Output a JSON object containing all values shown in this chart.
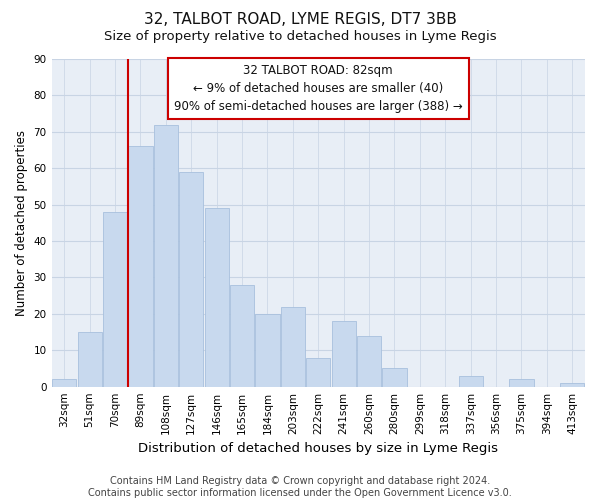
{
  "title": "32, TALBOT ROAD, LYME REGIS, DT7 3BB",
  "subtitle": "Size of property relative to detached houses in Lyme Regis",
  "xlabel": "Distribution of detached houses by size in Lyme Regis",
  "ylabel": "Number of detached properties",
  "categories": [
    "32sqm",
    "51sqm",
    "70sqm",
    "89sqm",
    "108sqm",
    "127sqm",
    "146sqm",
    "165sqm",
    "184sqm",
    "203sqm",
    "222sqm",
    "241sqm",
    "260sqm",
    "280sqm",
    "299sqm",
    "318sqm",
    "337sqm",
    "356sqm",
    "375sqm",
    "394sqm",
    "413sqm"
  ],
  "values": [
    2,
    15,
    48,
    66,
    72,
    59,
    49,
    28,
    20,
    22,
    8,
    18,
    14,
    5,
    0,
    0,
    3,
    0,
    2,
    0,
    1
  ],
  "bar_color": "#c8d9ee",
  "bar_edge_color": "#a8c0dd",
  "highlight_line_color": "#cc0000",
  "highlight_line_index": 3,
  "ylim": [
    0,
    90
  ],
  "yticks": [
    0,
    10,
    20,
    30,
    40,
    50,
    60,
    70,
    80,
    90
  ],
  "annotation_text": "32 TALBOT ROAD: 82sqm\n← 9% of detached houses are smaller (40)\n90% of semi-detached houses are larger (388) →",
  "annotation_box_facecolor": "#ffffff",
  "annotation_box_edgecolor": "#cc0000",
  "footer_line1": "Contains HM Land Registry data © Crown copyright and database right 2024.",
  "footer_line2": "Contains public sector information licensed under the Open Government Licence v3.0.",
  "bg_color": "#ffffff",
  "plot_bg_color": "#e8eef6",
  "grid_color": "#c8d4e4",
  "title_fontsize": 11,
  "subtitle_fontsize": 9.5,
  "xlabel_fontsize": 9.5,
  "ylabel_fontsize": 8.5,
  "tick_fontsize": 7.5,
  "annotation_fontsize": 8.5,
  "footer_fontsize": 7
}
